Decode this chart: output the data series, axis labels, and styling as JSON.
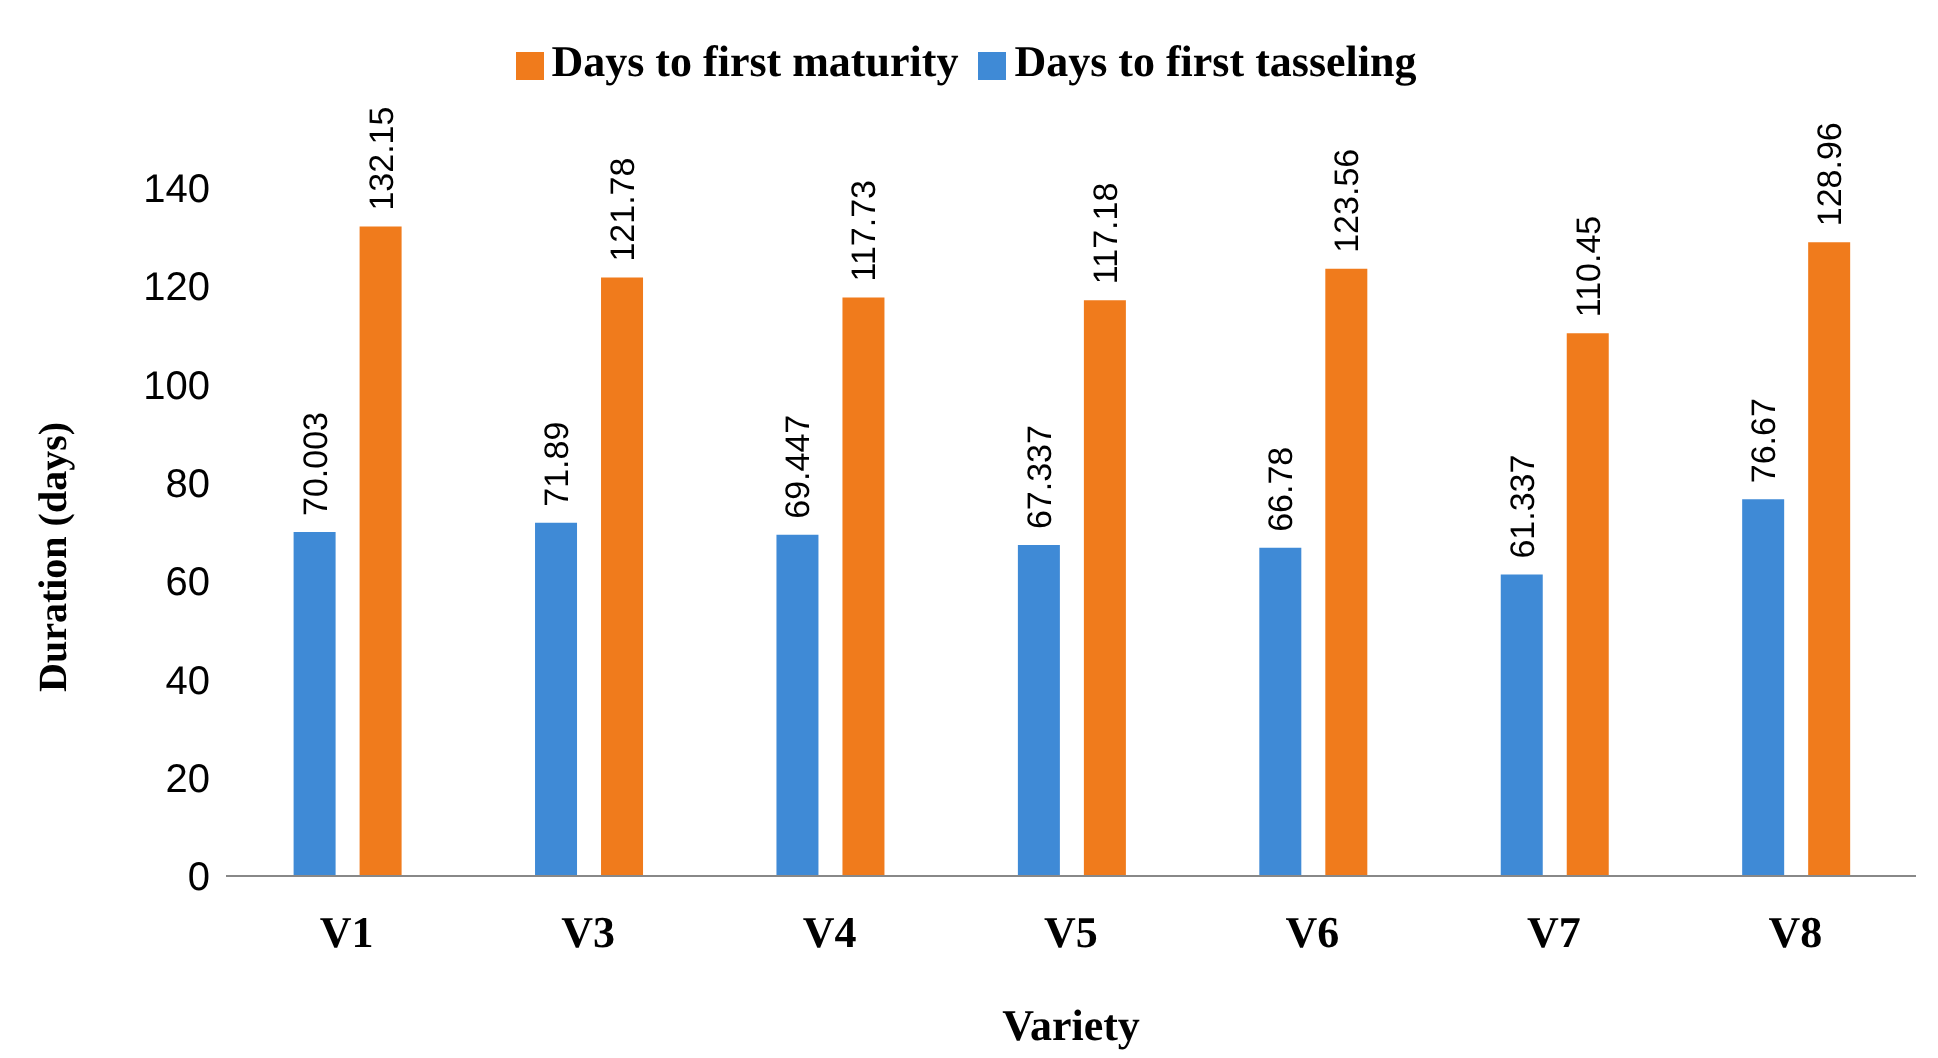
{
  "chart_data": {
    "type": "bar",
    "xlabel": "Variety",
    "ylabel": "Duration (days)",
    "categories": [
      "V1",
      "V3",
      "V4",
      "V5",
      "V6",
      "V7",
      "V8"
    ],
    "series": [
      {
        "name": "Days to first tasseling",
        "color": "#3f8ad6",
        "values": [
          70.003,
          71.89,
          69.447,
          67.337,
          66.78,
          61.337,
          76.67
        ]
      },
      {
        "name": "Days to first maturity",
        "color": "#f07b1c",
        "values": [
          132.15,
          121.78,
          117.73,
          117.18,
          123.56,
          110.45,
          128.96
        ]
      }
    ],
    "ylim": [
      0,
      140
    ],
    "yticks": [
      0,
      20,
      40,
      60,
      80,
      100,
      120,
      140
    ],
    "data_labels": true,
    "legend": "top",
    "grid": false
  }
}
